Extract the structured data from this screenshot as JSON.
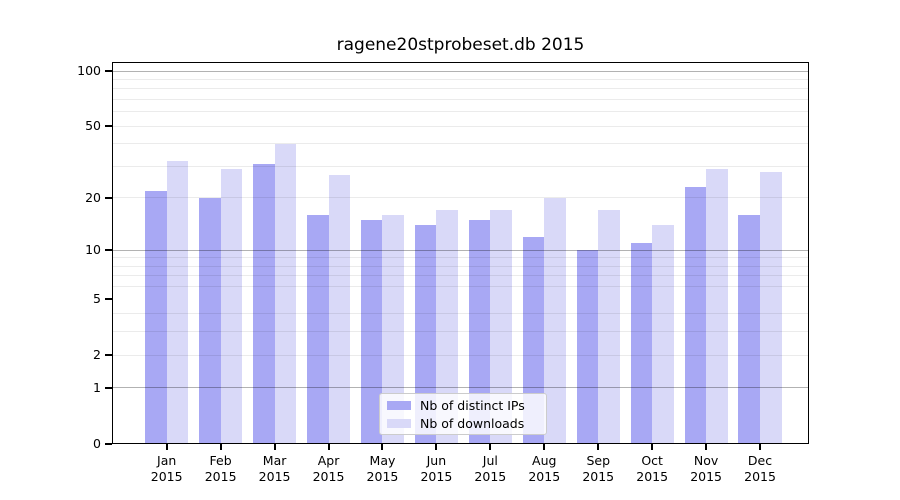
{
  "title": "ragene20stprobeset.db 2015",
  "legend": {
    "items": [
      {
        "label": "Nb of distinct IPs",
        "color": "#a8a8f4"
      },
      {
        "label": "Nb of downloads",
        "color": "#d9d9f8"
      }
    ]
  },
  "chart_data": {
    "type": "bar",
    "title": "ragene20stprobeset.db 2015",
    "categories": [
      "Jan 2015",
      "Feb 2015",
      "Mar 2015",
      "Apr 2015",
      "May 2015",
      "Jun 2015",
      "Jul 2015",
      "Aug 2015",
      "Sep 2015",
      "Oct 2015",
      "Nov 2015",
      "Dec 2015"
    ],
    "series": [
      {
        "name": "Nb of distinct IPs",
        "color": "#a8a8f4",
        "values": [
          22,
          20,
          31,
          16,
          15,
          14,
          15,
          12,
          10,
          11,
          23,
          16
        ]
      },
      {
        "name": "Nb of downloads",
        "color": "#d9d9f8",
        "values": [
          32,
          29,
          40,
          27,
          16,
          17,
          17,
          20,
          17,
          14,
          29,
          28
        ]
      }
    ],
    "xlabel": "",
    "ylabel": "",
    "yscale": "log1p",
    "ylim": [
      0,
      112
    ],
    "yticks": [
      0,
      1,
      2,
      5,
      10,
      20,
      50,
      100
    ],
    "major_gridlines": [
      1,
      10,
      100
    ],
    "minor_gridlines": [
      2,
      3,
      4,
      6,
      7,
      8,
      9,
      20,
      30,
      40,
      50,
      60,
      70,
      80,
      90
    ],
    "grid": "on",
    "legend_position": "lower center"
  }
}
